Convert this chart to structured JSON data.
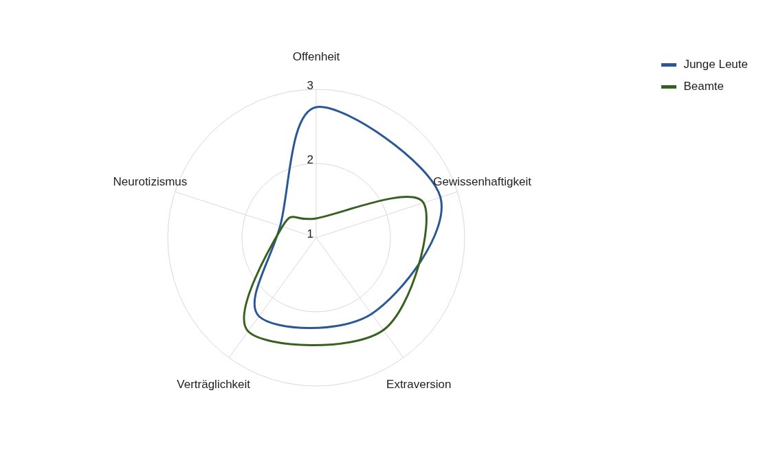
{
  "chart_data": {
    "type": "radar",
    "categories": [
      "Offenheit",
      "Gewissenhaftigkeit",
      "Extraversion",
      "Verträglichkeit",
      "Neurotizismus"
    ],
    "series": [
      {
        "name": "Junge Leute",
        "color": "#2b5797",
        "values": [
          2.76,
          2.76,
          2.27,
          2.31,
          1.51
        ]
      },
      {
        "name": "Beamte",
        "color": "#38601f",
        "values": [
          1.26,
          2.52,
          2.54,
          2.56,
          1.48
        ]
      }
    ],
    "ylim": [
      1,
      3
    ],
    "yticks": [
      1,
      2,
      3
    ],
    "grid": true,
    "legend": "top right"
  }
}
